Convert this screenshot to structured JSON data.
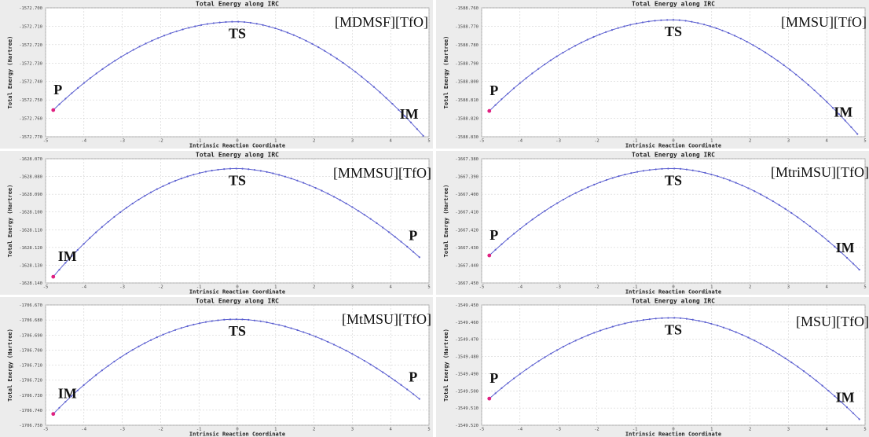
{
  "chart_data": [
    {
      "type": "line",
      "title": "Total Energy along IRC",
      "xlabel": "Intrinsic Reaction Coordinate",
      "ylabel": "Total Energy (Hartree)",
      "molecule": "[MDMSF][TfO]",
      "xlim": [
        -5,
        5
      ],
      "ylim": [
        -1572.77,
        -1572.7
      ],
      "xticks": [
        "-5",
        "-4",
        "-3",
        "-2",
        "-1",
        "0",
        "1",
        "2",
        "3",
        "4",
        "5"
      ],
      "yticks": [
        "-1572.700",
        "-1572.710",
        "-1572.720",
        "-1572.730",
        "-1572.740",
        "-1572.750",
        "-1572.760",
        "-1572.770"
      ],
      "annotations": [
        {
          "text": "P",
          "x": -4.8
        },
        {
          "text": "TS",
          "x": 0
        },
        {
          "text": "IM",
          "x": 4.6
        }
      ],
      "curve": {
        "x_start": -4.8,
        "x_end": 4.85,
        "y_start": -1572.7555,
        "y_peak": -1572.7075,
        "x_peak": 0,
        "y_end": -1572.7695
      },
      "highlight_point": "start",
      "grid": true,
      "line_color": "#5b5fd0",
      "highlight_color": "#e02080"
    },
    {
      "type": "line",
      "title": "Total Energy along IRC",
      "xlabel": "Intrinsic Reaction Coordinate",
      "ylabel": "Total Energy (Hartree)",
      "molecule": "[MMSU][TfO]",
      "xlim": [
        -5,
        5
      ],
      "ylim": [
        -1588.83,
        -1588.76
      ],
      "xticks": [
        "-5",
        "-4",
        "-3",
        "-2",
        "-1",
        "0",
        "1",
        "2",
        "3",
        "4",
        "5"
      ],
      "yticks": [
        "-1588.760",
        "-1588.770",
        "-1588.780",
        "-1588.790",
        "-1588.800",
        "-1588.810",
        "-1588.820",
        "-1588.830"
      ],
      "annotations": [
        {
          "text": "P",
          "x": -4.8
        },
        {
          "text": "TS",
          "x": 0
        },
        {
          "text": "IM",
          "x": 4.6
        }
      ],
      "curve": {
        "x_start": -4.8,
        "x_end": 4.8,
        "y_start": -1588.816,
        "y_peak": -1588.7665,
        "x_peak": 0,
        "y_end": -1588.8285
      },
      "highlight_point": "start",
      "grid": true,
      "line_color": "#5b5fd0",
      "highlight_color": "#e02080"
    },
    {
      "type": "line",
      "title": "Total Energy along IRC",
      "xlabel": "Intrinsic Reaction Coordinate",
      "ylabel": "Total Energy (Hartree)",
      "molecule": "[MMMSU][TfO]",
      "xlim": [
        -5,
        5
      ],
      "ylim": [
        -1628.14,
        -1628.07
      ],
      "xticks": [
        "-5",
        "-4",
        "-3",
        "-2",
        "-1",
        "0",
        "1",
        "2",
        "3",
        "4",
        "5"
      ],
      "yticks": [
        "-1628.070",
        "-1628.080",
        "-1628.090",
        "-1628.100",
        "-1628.110",
        "-1628.120",
        "-1628.130",
        "-1628.140"
      ],
      "annotations": [
        {
          "text": "IM",
          "x": -4.6
        },
        {
          "text": "TS",
          "x": 0
        },
        {
          "text": "P",
          "x": 4.6
        }
      ],
      "curve": {
        "x_start": -4.8,
        "x_end": 4.75,
        "y_start": -1628.1365,
        "y_peak": -1628.0755,
        "x_peak": 0,
        "y_end": -1628.1255
      },
      "highlight_point": "start",
      "grid": true,
      "line_color": "#5b5fd0",
      "highlight_color": "#e02080"
    },
    {
      "type": "line",
      "title": "Total Energy along IRC",
      "xlabel": "Intrinsic Reaction Coordinate",
      "ylabel": "Total Energy (Hartree)",
      "molecule": "[MtriMSU][TfO]",
      "xlim": [
        -5,
        5
      ],
      "ylim": [
        -1667.45,
        -1667.38
      ],
      "xticks": [
        "-5",
        "-4",
        "-3",
        "-2",
        "-1",
        "0",
        "1",
        "2",
        "3",
        "4",
        "5"
      ],
      "yticks": [
        "-1667.380",
        "-1667.390",
        "-1667.400",
        "-1667.410",
        "-1667.420",
        "-1667.430",
        "-1667.440",
        "-1667.450"
      ],
      "annotations": [
        {
          "text": "P",
          "x": -4.8
        },
        {
          "text": "TS",
          "x": 0
        },
        {
          "text": "IM",
          "x": 4.6
        }
      ],
      "curve": {
        "x_start": -4.8,
        "x_end": 4.85,
        "y_start": -1667.4345,
        "y_peak": -1667.3855,
        "x_peak": 0,
        "y_end": -1667.4425
      },
      "highlight_point": "start",
      "grid": true,
      "line_color": "#5b5fd0",
      "highlight_color": "#e02080"
    },
    {
      "type": "line",
      "title": "Total Energy along IRC",
      "xlabel": "Intrinsic Reaction Coordinate",
      "ylabel": "Total Energy (Hartree)",
      "molecule": "[MtMSU][TfO]",
      "xlim": [
        -5,
        5
      ],
      "ylim": [
        -1706.75,
        -1706.67
      ],
      "xticks": [
        "-5",
        "-4",
        "-3",
        "-2",
        "-1",
        "0",
        "1",
        "2",
        "3",
        "4",
        "5"
      ],
      "yticks": [
        "-1706.670",
        "-1706.680",
        "-1706.690",
        "-1706.700",
        "-1706.710",
        "-1706.720",
        "-1706.730",
        "-1706.740",
        "-1706.750"
      ],
      "annotations": [
        {
          "text": "IM",
          "x": -4.6
        },
        {
          "text": "TS",
          "x": 0
        },
        {
          "text": "P",
          "x": 4.6
        }
      ],
      "curve": {
        "x_start": -4.8,
        "x_end": 4.75,
        "y_start": -1706.7425,
        "y_peak": -1706.6795,
        "x_peak": 0,
        "y_end": -1706.7325
      },
      "highlight_point": "start",
      "grid": true,
      "line_color": "#5b5fd0",
      "highlight_color": "#e02080"
    },
    {
      "type": "line",
      "title": "Total Energy along IRC",
      "xlabel": "Intrinsic Reaction Coordinate",
      "ylabel": "Total Energy (Hartree)",
      "molecule": "[MSU][TfO]",
      "xlim": [
        -5,
        5
      ],
      "ylim": [
        -1549.52,
        -1549.45
      ],
      "xticks": [
        "-5",
        "-4",
        "-3",
        "-2",
        "-1",
        "0",
        "1",
        "2",
        "3",
        "4",
        "5"
      ],
      "yticks": [
        "-1549.450",
        "-1549.460",
        "-1549.470",
        "-1549.480",
        "-1549.490",
        "-1549.500",
        "-1549.510",
        "-1549.520"
      ],
      "annotations": [
        {
          "text": "P",
          "x": -4.8
        },
        {
          "text": "TS",
          "x": 0
        },
        {
          "text": "IM",
          "x": 4.6
        }
      ],
      "curve": {
        "x_start": -4.8,
        "x_end": 4.85,
        "y_start": -1549.5045,
        "y_peak": -1549.4575,
        "x_peak": 0,
        "y_end": -1549.5165
      },
      "highlight_point": "start",
      "grid": true,
      "line_color": "#5b5fd0",
      "highlight_color": "#e02080"
    }
  ]
}
